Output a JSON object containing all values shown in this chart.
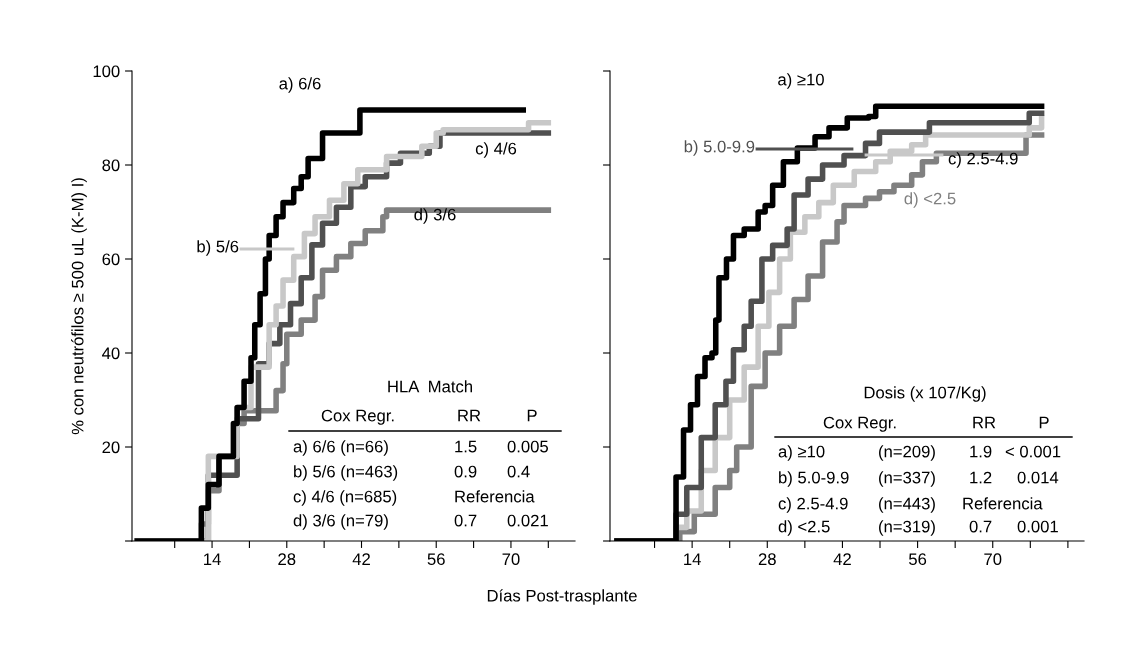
{
  "chart_data": [
    {
      "type": "step",
      "ylabel": "% con neutrófilos ≥ 500 uL (K-M) I)",
      "xlabel": "Días Post-trasplante",
      "xlim": [
        -1,
        82
      ],
      "ylim": [
        0,
        100
      ],
      "xticks": [
        {
          "value": 7,
          "label": null
        },
        14,
        {
          "value": 21,
          "label": null
        },
        28,
        {
          "value": 35,
          "label": null
        },
        42,
        {
          "value": 49,
          "label": null
        },
        56,
        {
          "value": 63,
          "label": null
        },
        70,
        {
          "value": 77,
          "label": null
        }
      ],
      "yticks": [
        {
          "value": 0,
          "label": null
        },
        20,
        40,
        60,
        80,
        100
      ],
      "series": [
        {
          "name": "a) 6/6",
          "color": "#000000",
          "x": [
            0,
            11.3,
            12,
            13.3,
            15.3,
            18,
            18.7,
            20,
            21.3,
            22,
            23,
            24,
            24.7,
            26,
            27.3,
            29.3,
            30.7,
            32,
            34.7,
            41,
            41.7,
            72.3
          ],
          "values": [
            0,
            0,
            7,
            12,
            18,
            25,
            28.4,
            34,
            39,
            46,
            52.6,
            60,
            65,
            69,
            72,
            75,
            77.5,
            81.4,
            86.8,
            86.8,
            91.7,
            91.7
          ]
        },
        {
          "name": "b) 5/6",
          "color": "#c8c8c8",
          "x": [
            0,
            11.5,
            13.3,
            18.7,
            21.3,
            24.7,
            26,
            27.3,
            29.3,
            31.3,
            33.3,
            36,
            38.7,
            41.3,
            46.7,
            53.3,
            56,
            57.3,
            73.3,
            77
          ],
          "values": [
            0,
            0,
            18,
            28.4,
            37,
            46,
            50,
            55.5,
            60.5,
            65.4,
            69,
            72.5,
            76,
            79,
            81.8,
            84,
            86.8,
            87.5,
            89,
            89
          ]
        },
        {
          "name": "c) 4/6",
          "color": "#505050",
          "x": [
            0,
            11.5,
            13.3,
            18.7,
            22.7,
            24.7,
            26.7,
            28.7,
            30.7,
            32.7,
            34.7,
            37.3,
            40,
            42.7,
            46.7,
            49.3,
            54.7,
            56.7,
            77
          ],
          "values": [
            0,
            0,
            14,
            26,
            37.7,
            42,
            46,
            50.5,
            56,
            63,
            67.6,
            71,
            75.4,
            77.5,
            80.4,
            82.5,
            84,
            86.8,
            86.8
          ]
        },
        {
          "name": "d) 3/6",
          "color": "#808080",
          "x": [
            0,
            11,
            12,
            13.3,
            15.3,
            18.7,
            20,
            24.7,
            26,
            27.3,
            28,
            30.7,
            33.3,
            34.7,
            37.3,
            40,
            42.7,
            46,
            46.7,
            77
          ],
          "values": [
            0,
            0,
            3.6,
            10.7,
            18,
            25,
            27.7,
            27.7,
            32,
            37.7,
            44,
            47,
            52,
            57.6,
            60.5,
            63.3,
            66,
            69,
            70.4,
            70.4
          ]
        }
      ],
      "annotations": [
        "HLA  Match",
        "Cox Regr.",
        "RR",
        "P",
        "a) 6/6 (n=66)",
        "1.5",
        "0.005",
        "b) 5/6 (n=463)",
        "0.9",
        "0.4",
        "c) 4/6 (n=685)",
        "Referencia",
        "d) 3/6 (n=79)",
        "0.7",
        "0.021"
      ]
    },
    {
      "type": "step",
      "tick_labels": "x",
      "xlim": [
        -1.3,
        87
      ],
      "ylim": [
        0,
        100
      ],
      "xticks": [
        {
          "value": 7,
          "label": null
        },
        14,
        {
          "value": 21,
          "label": null
        },
        28,
        {
          "value": 35,
          "label": null
        },
        42,
        {
          "value": 49,
          "label": null
        },
        56,
        {
          "value": 63,
          "label": null
        },
        70,
        {
          "value": 77,
          "label": null
        },
        {
          "value": 84,
          "label": null
        }
      ],
      "yticks": [
        {
          "value": 0,
          "label": null
        },
        {
          "value": 20,
          "label": null
        },
        {
          "value": 40,
          "label": null
        },
        {
          "value": 60,
          "label": null
        },
        {
          "value": 80,
          "label": null
        },
        {
          "value": 100,
          "label": null
        }
      ],
      "series": [
        {
          "name": "a) ≥10",
          "color": "#000000",
          "x": [
            0,
            9.7,
            11,
            12.4,
            13.7,
            15,
            16.4,
            17.7,
            18.4,
            19,
            20.4,
            21.7,
            23.7,
            26.3,
            27.6,
            29,
            31,
            33.6,
            36.9,
            39.5,
            42.9,
            46.9,
            48.2,
            79.1
          ],
          "values": [
            0,
            0,
            13.6,
            23.6,
            29,
            35,
            39,
            40,
            47,
            56,
            60,
            65,
            66.4,
            70,
            71.4,
            75.7,
            80.7,
            83.6,
            86,
            87.9,
            90,
            90.3,
            92.5,
            92.5
          ]
        },
        {
          "name": "b) 5.0-9.9",
          "color": "#505050",
          "x": [
            0,
            10,
            11,
            13,
            15.7,
            18.3,
            20.3,
            21.7,
            23.7,
            25,
            27,
            29,
            31.7,
            33,
            35.6,
            38.3,
            42.3,
            46.3,
            48.9,
            56.9,
            58.2,
            76.2,
            76.8,
            79.1
          ],
          "values": [
            0,
            0,
            5.7,
            11.4,
            22,
            29,
            34,
            40.7,
            45.7,
            51,
            60,
            62.9,
            66.4,
            73.6,
            77,
            80,
            82,
            84.6,
            87,
            87,
            89,
            89,
            91,
            91
          ]
        },
        {
          "name": "c) 2.5-4.9",
          "color": "#c8c8c8",
          "x": [
            0,
            10,
            11,
            13,
            15.7,
            18.3,
            21,
            23.7,
            26.3,
            28.3,
            30.3,
            32.3,
            35,
            37.6,
            40.3,
            44.2,
            48.2,
            50.9,
            54.9,
            57.5,
            76.8,
            79.1
          ],
          "values": [
            0,
            0,
            2.9,
            6.4,
            15,
            22,
            30,
            37,
            45.7,
            52.9,
            60,
            65.7,
            69,
            72,
            75.7,
            78.6,
            80.7,
            82.9,
            84.3,
            86.4,
            87.9,
            90
          ]
        },
        {
          "name": "d) <2.5",
          "color": "#808080",
          "x": [
            0,
            10.5,
            11.7,
            14.4,
            18.3,
            21,
            22.3,
            25,
            27.6,
            30.3,
            33,
            35.6,
            38.3,
            41,
            42.3,
            46.3,
            48.9,
            51.6,
            54.9,
            56.9,
            59.5,
            74.8,
            76.2,
            79.1
          ],
          "values": [
            0,
            0,
            2,
            5.7,
            11.4,
            15,
            20,
            32.9,
            40,
            45.7,
            51.4,
            56.4,
            63.6,
            67.9,
            71.4,
            72.9,
            74.3,
            75.7,
            77.9,
            80.7,
            82.5,
            82.5,
            86.4,
            86.4
          ]
        }
      ],
      "annotations": [
        "Dosis (x 107/Kg)",
        "Cox Regr.",
        "RR",
        "P",
        "a) ≥10",
        "(n=209)",
        "1.9",
        "< 0.001",
        "b) 5.0-9.9",
        "(n=337)",
        "1.2",
        "0.014",
        "c) 2.5-4.9",
        "(n=443)",
        "Referencia",
        "d) <2.5",
        "(n=319)",
        "0.7",
        "0.001"
      ]
    }
  ]
}
